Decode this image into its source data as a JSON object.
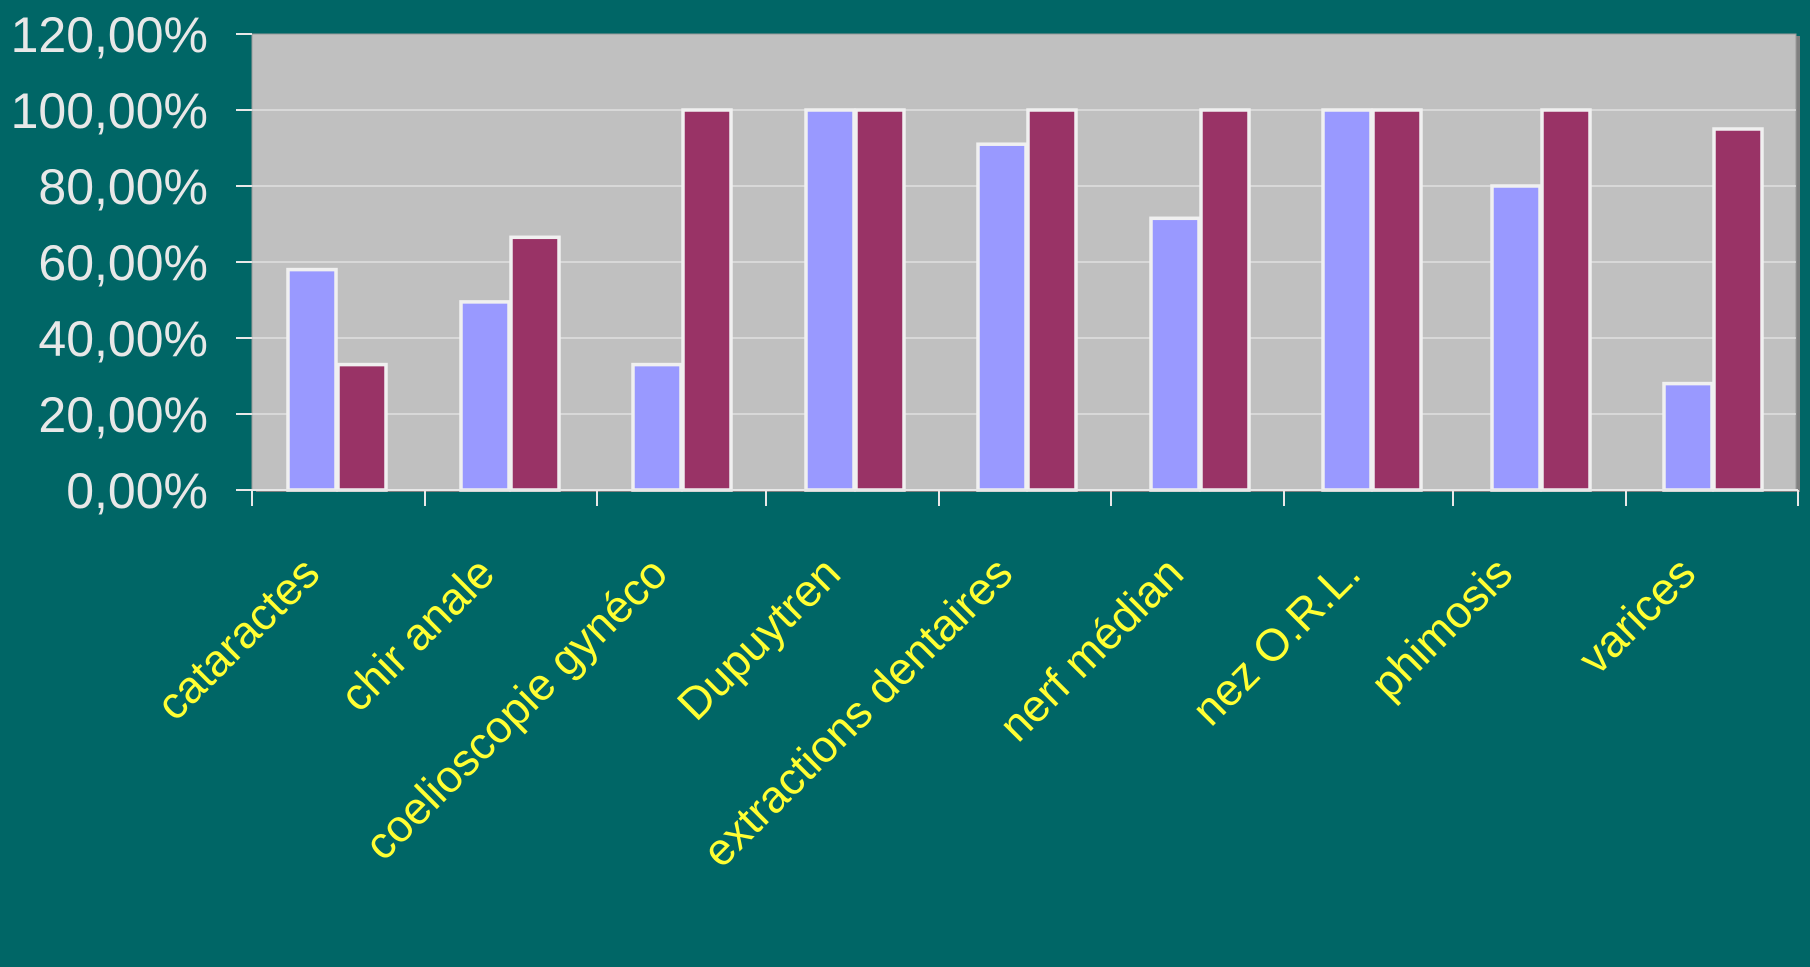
{
  "chart_data": {
    "type": "bar",
    "categories": [
      "cataractes",
      "chir anale",
      "coelioscopie gynéco",
      "Dupuytren",
      "extractions dentaires",
      "nerf médian",
      "nez O.R.L.",
      "phimosis",
      "varices"
    ],
    "series": [
      {
        "values": [
          58,
          49.5,
          33,
          100,
          91,
          71.5,
          100,
          80,
          28
        ]
      },
      {
        "values": [
          33,
          66.5,
          100,
          100,
          100,
          100,
          100,
          100,
          95
        ]
      }
    ],
    "ylim": [
      0,
      120
    ],
    "yticks": [
      "0,00%",
      "20,00%",
      "40,00%",
      "60,00%",
      "80,00%",
      "100,00%",
      "120,00%"
    ],
    "grid": true,
    "colors": {
      "background": "#006666",
      "plot_area": "#c0c0c0",
      "series_1": "#9999ff",
      "series_2": "#993366",
      "bar_outline": "#f0f0f0",
      "gridline": "#e6e6e6",
      "ytick_text": "#e8e8e8",
      "xtick_text": "#ffff33"
    }
  }
}
